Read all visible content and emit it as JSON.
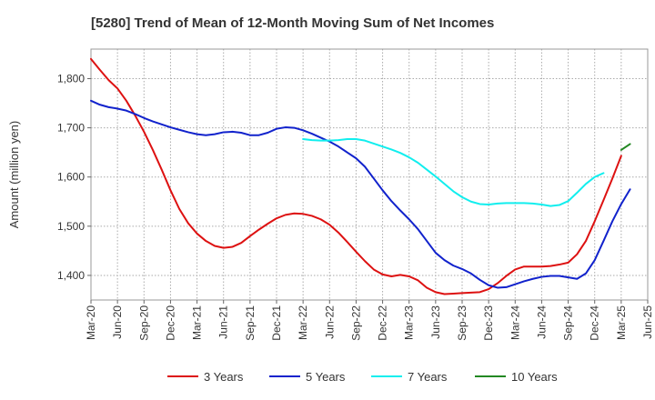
{
  "chart_data": {
    "type": "line",
    "title": "[5280]  Trend of Mean of 12-Month Moving Sum of Net Incomes",
    "xlabel": "",
    "ylabel": "Amount (million yen)",
    "ylim": [
      1350,
      1860
    ],
    "yticks": [
      1400,
      1500,
      1600,
      1700,
      1800
    ],
    "ytick_labels": [
      "1,400",
      "1,500",
      "1,600",
      "1,700",
      "1,800"
    ],
    "x_tick_labels": [
      "Mar-20",
      "Jun-20",
      "Sep-20",
      "Dec-20",
      "Mar-21",
      "Jun-21",
      "Sep-21",
      "Dec-21",
      "Mar-22",
      "Jun-22",
      "Sep-22",
      "Dec-22",
      "Mar-23",
      "Jun-23",
      "Sep-23",
      "Dec-23",
      "Mar-24",
      "Jun-24",
      "Sep-24",
      "Dec-24",
      "Mar-25",
      "Jun-25"
    ],
    "x_start": "Mar-20",
    "grid": true,
    "legend_position": "bottom",
    "series": [
      {
        "name": "3 Years",
        "color": "#dd1111",
        "start_index": 0,
        "values": [
          1840,
          1818,
          1797,
          1780,
          1755,
          1725,
          1692,
          1655,
          1615,
          1573,
          1535,
          1506,
          1485,
          1470,
          1460,
          1456,
          1458,
          1466,
          1480,
          1493,
          1505,
          1516,
          1523,
          1526,
          1525,
          1521,
          1514,
          1503,
          1487,
          1468,
          1448,
          1429,
          1412,
          1402,
          1398,
          1401,
          1398,
          1390,
          1375,
          1366,
          1362,
          1363,
          1364,
          1365,
          1366,
          1372,
          1384,
          1399,
          1412,
          1418,
          1418,
          1418,
          1419,
          1422,
          1426,
          1443,
          1470,
          1510,
          1553,
          1597,
          1643
        ]
      },
      {
        "name": "5 Years",
        "color": "#1122cc",
        "start_index": 0,
        "values": [
          1755,
          1747,
          1742,
          1739,
          1735,
          1728,
          1720,
          1713,
          1707,
          1701,
          1696,
          1691,
          1687,
          1685,
          1687,
          1691,
          1692,
          1690,
          1685,
          1685,
          1690,
          1698,
          1701,
          1700,
          1695,
          1688,
          1680,
          1672,
          1662,
          1650,
          1638,
          1621,
          1597,
          1573,
          1551,
          1532,
          1514,
          1494,
          1470,
          1446,
          1431,
          1420,
          1413,
          1404,
          1391,
          1380,
          1375,
          1376,
          1382,
          1388,
          1393,
          1397,
          1399,
          1399,
          1396,
          1393,
          1404,
          1431,
          1470,
          1510,
          1545,
          1575
        ]
      },
      {
        "name": "7 Years",
        "color": "#11eeee",
        "start_index": 24,
        "values": [
          1677,
          1675,
          1674,
          1674,
          1675,
          1677,
          1677,
          1674,
          1668,
          1662,
          1656,
          1649,
          1640,
          1629,
          1615,
          1601,
          1586,
          1571,
          1559,
          1550,
          1545,
          1544,
          1546,
          1547,
          1547,
          1547,
          1546,
          1544,
          1541,
          1543,
          1551,
          1568,
          1586,
          1600,
          1608
        ]
      },
      {
        "name": "10 Years",
        "color": "#228822",
        "start_index": 60,
        "values": [
          1655,
          1667
        ]
      }
    ]
  }
}
